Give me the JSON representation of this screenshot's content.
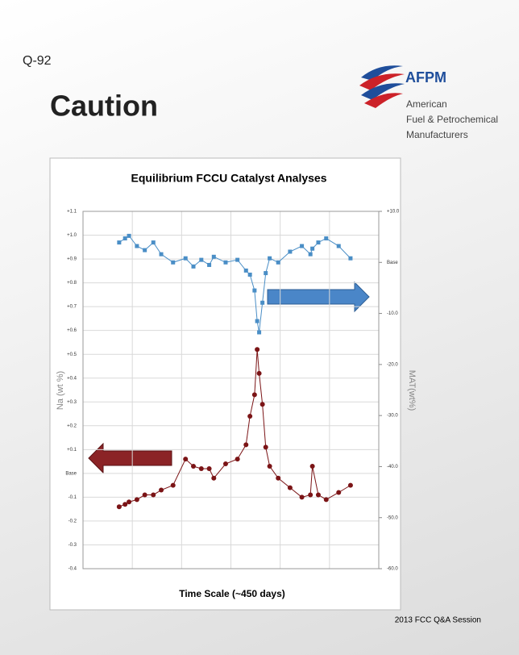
{
  "slide": {
    "question": "Q-92",
    "heading": "Caution",
    "logo": {
      "name": "AFPM",
      "lines": [
        "American",
        "Fuel & Petrochemical",
        "Manufacturers"
      ]
    },
    "footer": "2013 FCC Q&A Session"
  },
  "chart_data": {
    "type": "line",
    "title": "Equilibrium FCCU Catalyst Analyses",
    "xlabel": "Time Scale (~450 days)",
    "ylabel": "Na (wt %)",
    "y2label": "MAT(wt%)",
    "x": [
      55,
      64,
      70,
      82,
      94,
      107,
      119,
      137,
      156,
      168,
      180,
      192,
      199,
      217,
      235,
      248,
      254,
      261,
      265,
      268,
      273,
      278,
      284,
      297,
      315,
      333,
      346,
      349,
      358,
      370,
      389,
      407
    ],
    "xlim": [
      0,
      450
    ],
    "xticks": [
      0,
      75,
      150,
      225,
      300,
      375,
      450
    ],
    "ylim": [
      -0.4,
      1.1
    ],
    "yticks": [
      -0.4,
      -0.3,
      -0.2,
      -0.1,
      {
        "value": 0,
        "label": "Base"
      },
      {
        "value": 0.1,
        "label": "+0.1"
      },
      {
        "value": 0.2,
        "label": "+0.2"
      },
      {
        "value": 0.3,
        "label": "+0.3"
      },
      {
        "value": 0.4,
        "label": "+0.4"
      },
      {
        "value": 0.5,
        "label": "+0.5"
      },
      {
        "value": 0.6,
        "label": "+0.6"
      },
      {
        "value": 0.7,
        "label": "+0.7"
      },
      {
        "value": 0.8,
        "label": "+0.8"
      },
      {
        "value": 0.9,
        "label": "+0.9"
      },
      {
        "value": 1.0,
        "label": "+1.0"
      },
      {
        "value": 1.1,
        "label": "+1.1"
      }
    ],
    "y2lim": [
      -60,
      10
    ],
    "y2ticks": [
      {
        "value": -60,
        "label": "-60.0"
      },
      {
        "value": -50,
        "label": "-50.0"
      },
      {
        "value": -40,
        "label": "-40.0"
      },
      {
        "value": -30,
        "label": "-30.0"
      },
      {
        "value": -20,
        "label": "-20.0"
      },
      {
        "value": -10,
        "label": "-10.0"
      },
      {
        "value": 0,
        "label": "Base"
      },
      {
        "value": 10,
        "label": "+10.0"
      }
    ],
    "grid": true,
    "series": [
      {
        "color": "#7b1416",
        "marker": "circle",
        "values": [
          -0.14,
          -0.13,
          -0.12,
          -0.11,
          -0.09,
          -0.09,
          -0.07,
          -0.05,
          0.06,
          0.03,
          0.02,
          0.02,
          -0.02,
          0.04,
          0.06,
          0.12,
          0.24,
          0.33,
          0.52,
          0.42,
          0.29,
          0.11,
          0.03,
          -0.02,
          -0.06,
          -0.1,
          -0.09,
          0.03,
          -0.09,
          -0.11,
          -0.08,
          -0.05
        ]
      },
      {
        "color": "#4a8ec6",
        "marker": "square",
        "axis": "y2",
        "values": [
          3.9,
          4.7,
          5.2,
          3.2,
          2.4,
          3.9,
          1.6,
          0,
          0.8,
          -0.8,
          0.5,
          -0.5,
          1.1,
          0,
          0.5,
          -1.6,
          -2.4,
          -5.5,
          -11.5,
          -13.7,
          -7.9,
          -2.1,
          0.8,
          0,
          2.1,
          3.2,
          1.6,
          2.7,
          3.9,
          4.7,
          3.2,
          0.8
        ]
      }
    ]
  }
}
